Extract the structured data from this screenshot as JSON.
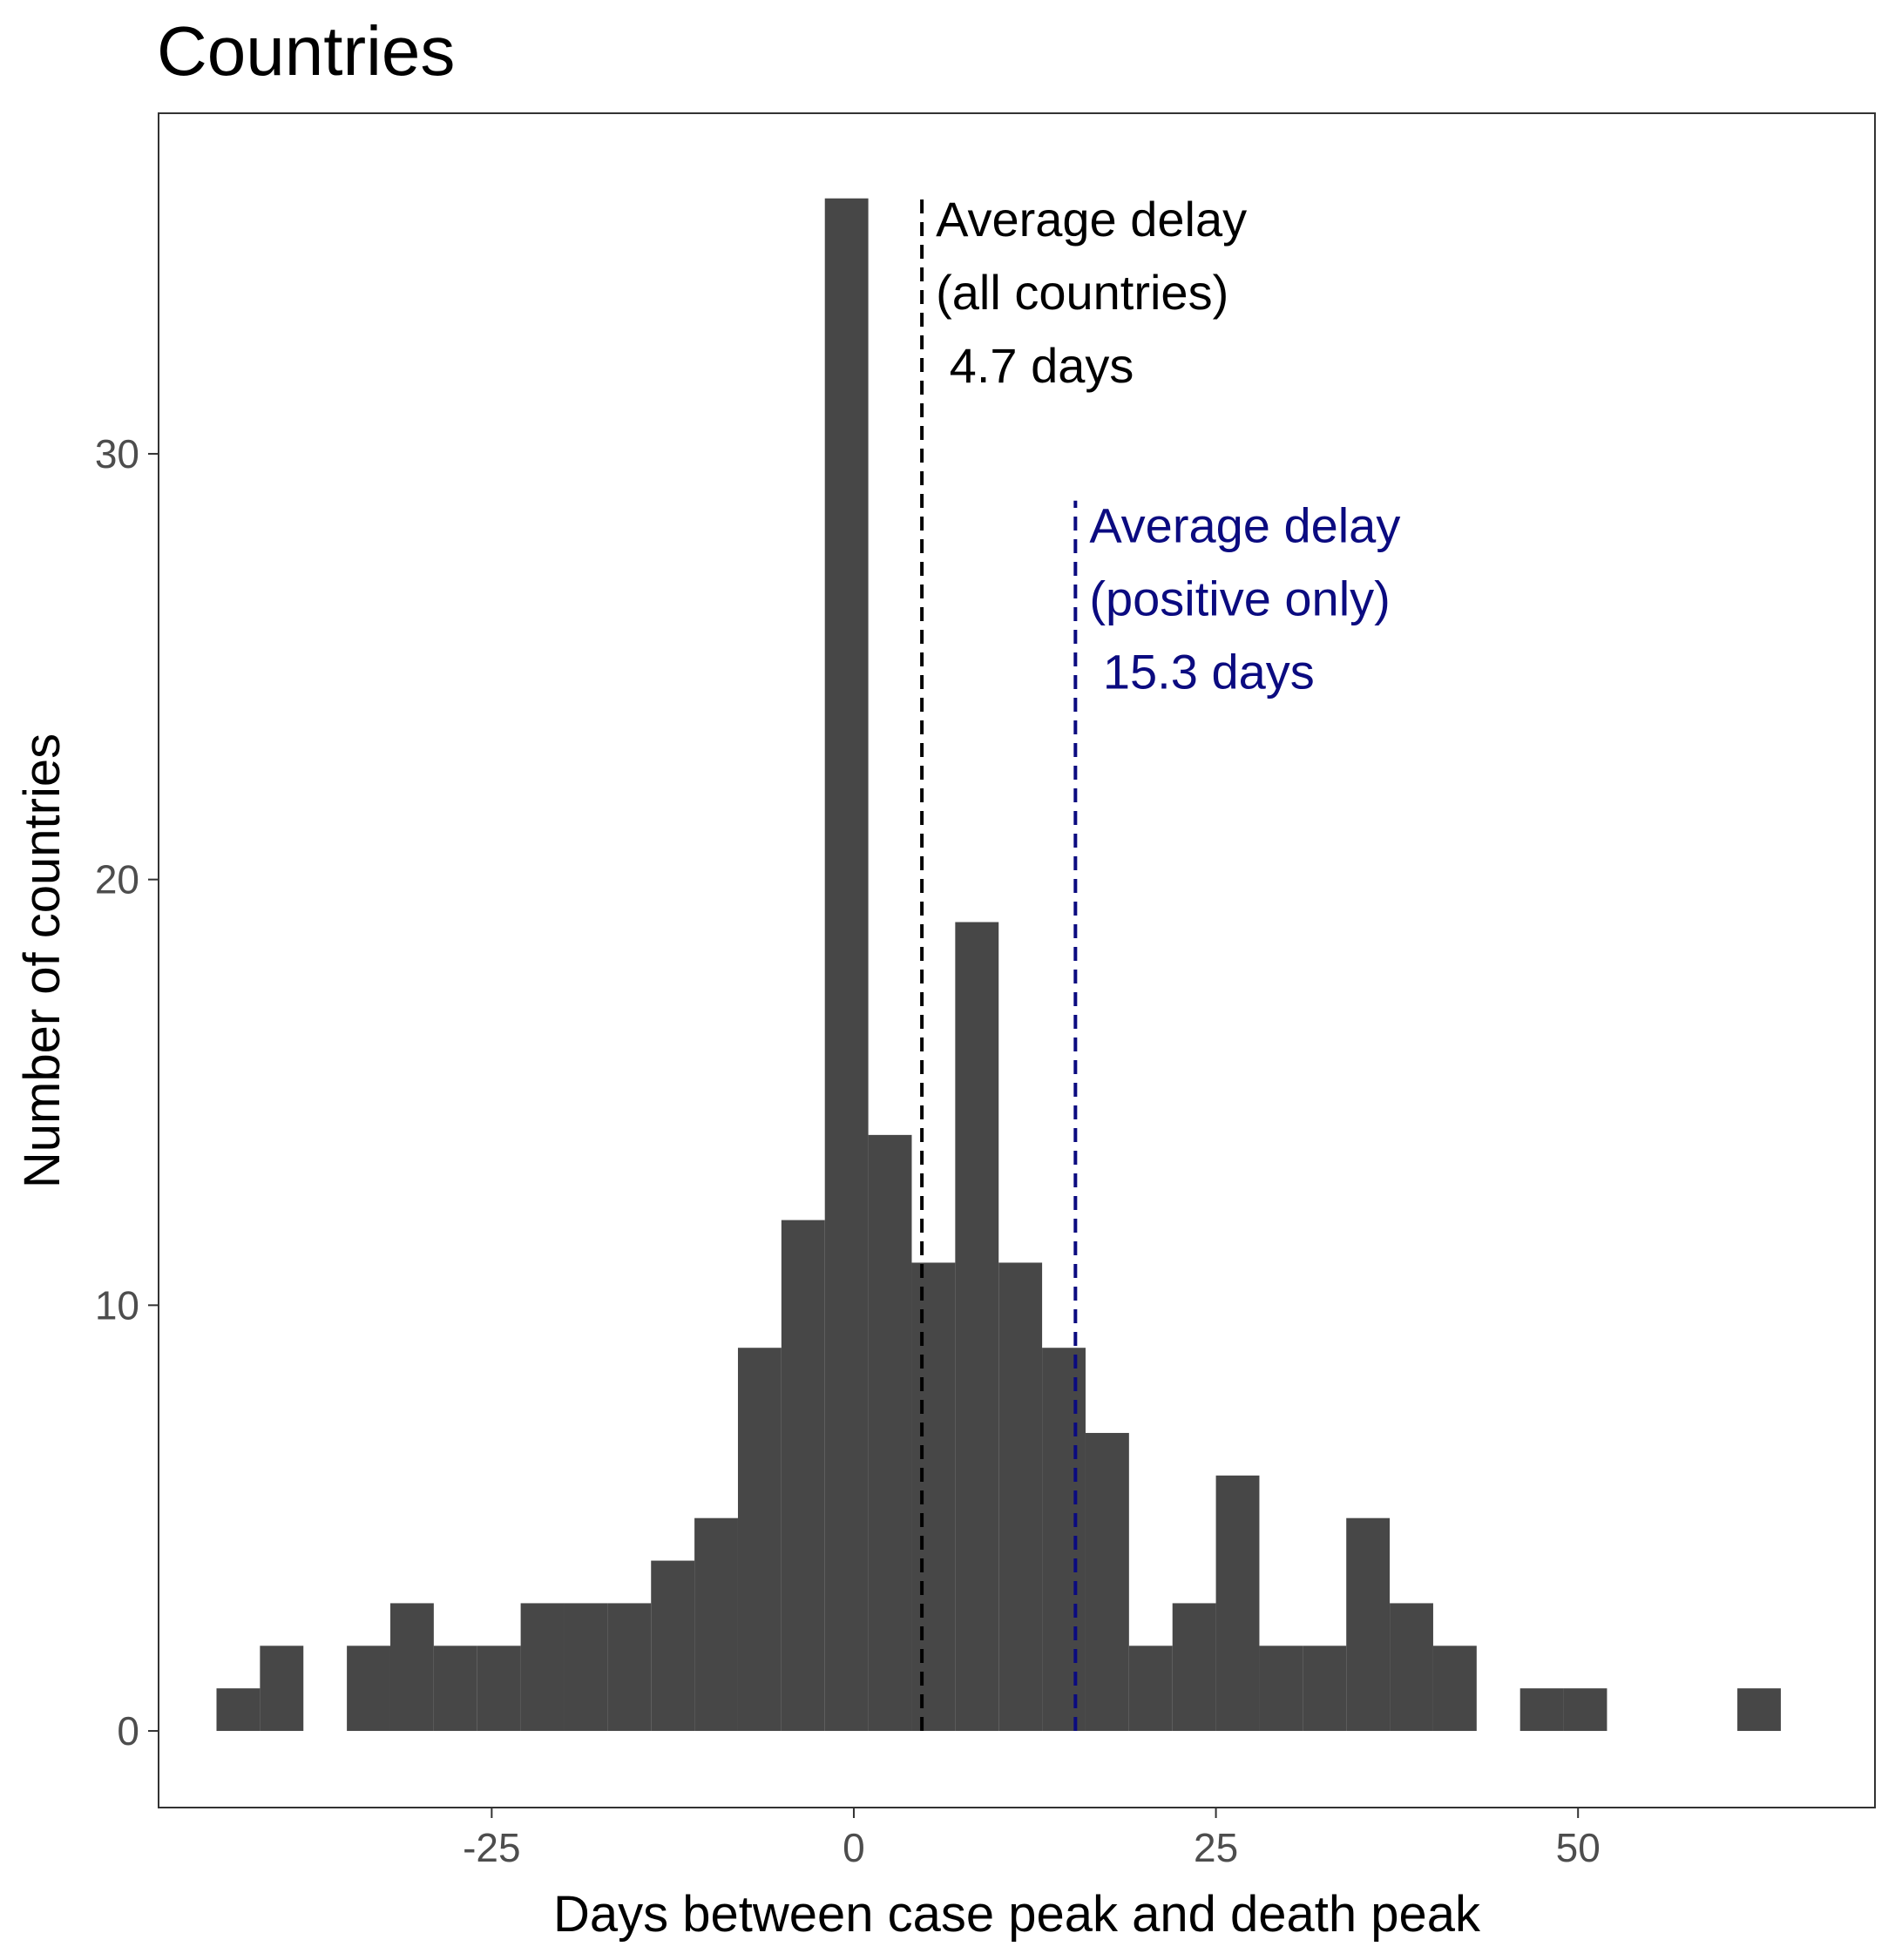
{
  "chart_data": {
    "type": "bar",
    "title": "Countries",
    "xlabel": "Days between case peak and death peak",
    "ylabel": "Number of countries",
    "bin_width": 3,
    "bins": [
      {
        "start": -44,
        "end": -41,
        "count": 1
      },
      {
        "start": -41,
        "end": -38,
        "count": 2
      },
      {
        "start": -38,
        "end": -35,
        "count": 0
      },
      {
        "start": -35,
        "end": -32,
        "count": 2
      },
      {
        "start": -32,
        "end": -29,
        "count": 3
      },
      {
        "start": -29,
        "end": -26,
        "count": 2
      },
      {
        "start": -26,
        "end": -23,
        "count": 2
      },
      {
        "start": -23,
        "end": -20,
        "count": 3
      },
      {
        "start": -20,
        "end": -17,
        "count": 3
      },
      {
        "start": -17,
        "end": -14,
        "count": 3
      },
      {
        "start": -14,
        "end": -11,
        "count": 4
      },
      {
        "start": -11,
        "end": -8,
        "count": 5
      },
      {
        "start": -8,
        "end": -5,
        "count": 9
      },
      {
        "start": -5,
        "end": -2,
        "count": 12
      },
      {
        "start": -2,
        "end": 1,
        "count": 36
      },
      {
        "start": 1,
        "end": 4,
        "count": 14
      },
      {
        "start": 4,
        "end": 7,
        "count": 11
      },
      {
        "start": 7,
        "end": 10,
        "count": 19
      },
      {
        "start": 10,
        "end": 13,
        "count": 11
      },
      {
        "start": 13,
        "end": 16,
        "count": 9
      },
      {
        "start": 16,
        "end": 19,
        "count": 7
      },
      {
        "start": 19,
        "end": 22,
        "count": 2
      },
      {
        "start": 22,
        "end": 25,
        "count": 3
      },
      {
        "start": 25,
        "end": 28,
        "count": 6
      },
      {
        "start": 28,
        "end": 31,
        "count": 2
      },
      {
        "start": 31,
        "end": 34,
        "count": 2
      },
      {
        "start": 34,
        "end": 37,
        "count": 5
      },
      {
        "start": 37,
        "end": 40,
        "count": 3
      },
      {
        "start": 40,
        "end": 43,
        "count": 2
      },
      {
        "start": 43,
        "end": 46,
        "count": 0
      },
      {
        "start": 46,
        "end": 49,
        "count": 1
      },
      {
        "start": 49,
        "end": 52,
        "count": 1
      },
      {
        "start": 52,
        "end": 55,
        "count": 0
      },
      {
        "start": 55,
        "end": 58,
        "count": 0
      },
      {
        "start": 58,
        "end": 61,
        "count": 0
      },
      {
        "start": 61,
        "end": 64,
        "count": 1
      }
    ],
    "xlim": [
      -48,
      70.5
    ],
    "ylim": [
      -1.8,
      38
    ],
    "x_ticks": [
      -25,
      0,
      25,
      50
    ],
    "x_tick_labels": [
      "-25",
      "0",
      "25",
      "50"
    ],
    "y_ticks": [
      0,
      10,
      20,
      30
    ],
    "y_tick_labels": [
      "0",
      "10",
      "20",
      "30"
    ],
    "grid": false,
    "bar_color": "#474747",
    "reference_lines": [
      {
        "x": 4.7,
        "y_top": 36.1,
        "color": "#000000",
        "style": "dashed",
        "label_lines": [
          "Average delay",
          "(all countries)",
          " 4.7 days"
        ]
      },
      {
        "x": 15.3,
        "y_top": 28.9,
        "color": "#0b0b80",
        "style": "dashed",
        "label_lines": [
          "Average delay",
          "(positive only)",
          " 15.3 days"
        ]
      }
    ]
  }
}
